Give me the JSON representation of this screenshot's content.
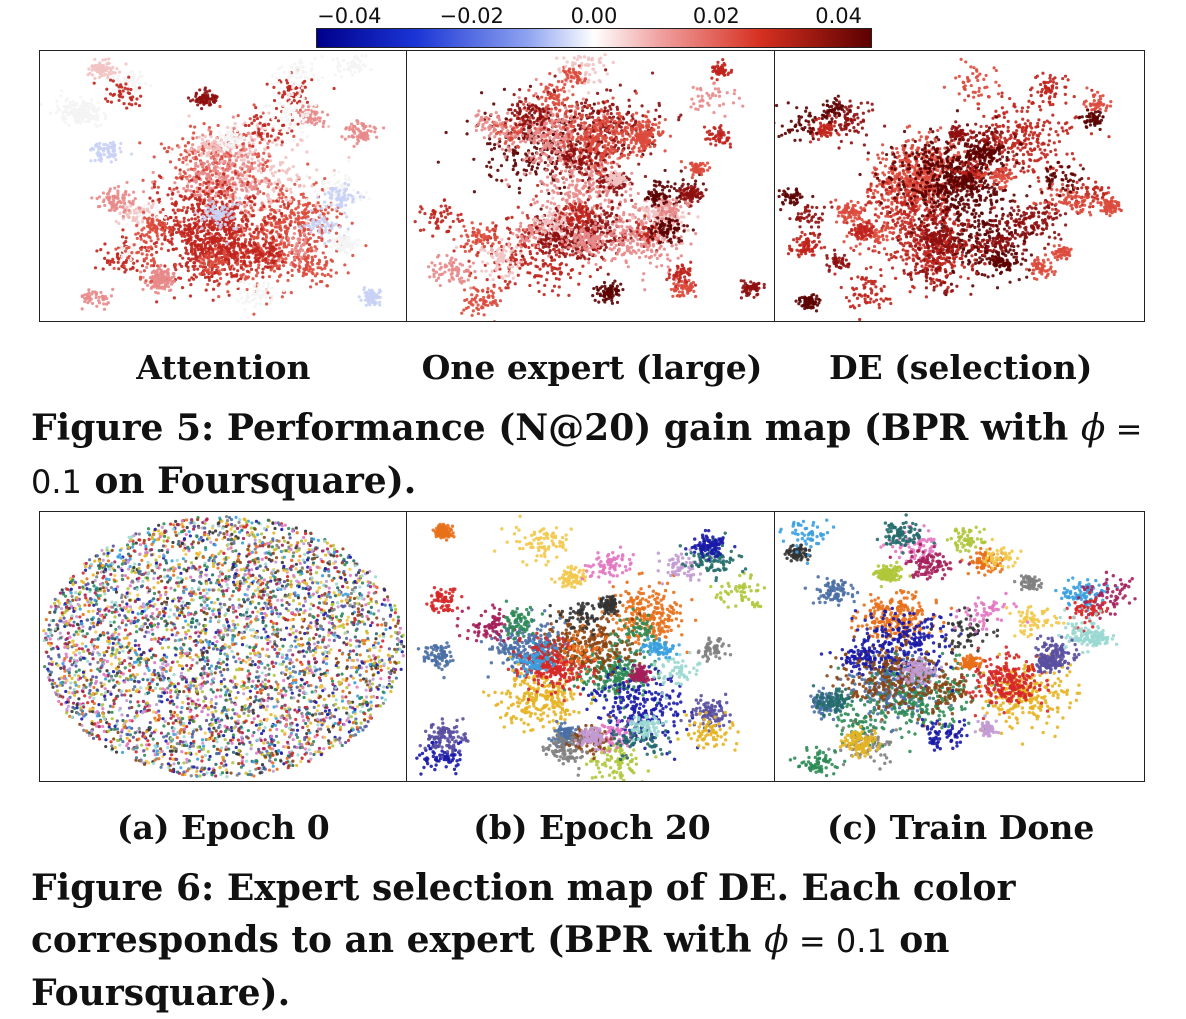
{
  "colorbar": {
    "ticks": [
      "−0.04",
      "−0.02",
      "0.00",
      "0.02",
      "0.04"
    ],
    "low_color": "#00008b",
    "mid_color": "#ffffff",
    "high_color": "#5c0000"
  },
  "figure5": {
    "panels": [
      {
        "label": "Attention"
      },
      {
        "label": "One expert (large)"
      },
      {
        "label": "DE (selection)"
      }
    ],
    "caption": {
      "prefix": "Figure 5: Performance (N@20) gain map (BPR with ",
      "phi": "ϕ",
      "eq": " = ",
      "value": "0.1",
      "suffix": " on Foursquare)."
    }
  },
  "figure6": {
    "panels": [
      {
        "label": "(a) Epoch 0"
      },
      {
        "label": "(b) Epoch 20"
      },
      {
        "label": "(c) Train Done"
      }
    ],
    "caption": {
      "prefix": "Figure 6: Expert selection map of DE. Each color corresponds to an expert (BPR with ",
      "phi": "ϕ",
      "eq": " = ",
      "value": "0.1",
      "suffix": " on Foursquare)."
    },
    "expert_colors": [
      "#e8701a",
      "#4a6fa5",
      "#2e8b57",
      "#1a1aa8",
      "#8b4513",
      "#e6b422",
      "#d62728",
      "#9ad8d2",
      "#b0c73a",
      "#3aa0e0",
      "#c39bd3",
      "#333333",
      "#e377c2",
      "#a51f5a",
      "#236b6b",
      "#f2c94c",
      "#5a4fa0",
      "#7f7f7f"
    ]
  }
}
